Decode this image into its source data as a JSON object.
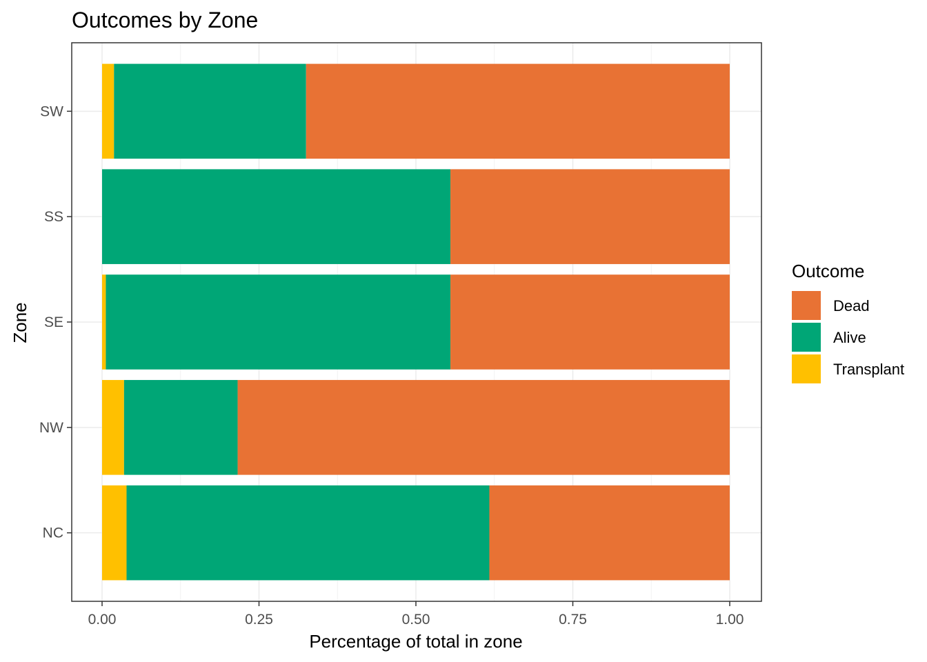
{
  "chart_data": {
    "type": "bar",
    "orientation": "horizontal",
    "stacked": true,
    "title": "Outcomes by Zone",
    "xlabel": "Percentage of total in zone",
    "ylabel": "Zone",
    "xlim": [
      0,
      1
    ],
    "x_ticks": [
      "0.00",
      "0.25",
      "0.50",
      "0.75",
      "1.00"
    ],
    "categories": [
      "NC",
      "NW",
      "SE",
      "SS",
      "SW"
    ],
    "series": [
      {
        "name": "Transplant",
        "color": "#FFC000",
        "values": [
          0.039,
          0.035,
          0.006,
          0.0,
          0.019
        ]
      },
      {
        "name": "Alive",
        "color": "#00A676",
        "values": [
          0.578,
          0.181,
          0.549,
          0.555,
          0.306
        ]
      },
      {
        "name": "Dead",
        "color": "#E87234",
        "values": [
          0.383,
          0.784,
          0.445,
          0.445,
          0.675
        ]
      }
    ],
    "legend": {
      "title": "Outcome",
      "position": "right",
      "order": [
        "Dead",
        "Alive",
        "Transplant"
      ]
    },
    "grid": true,
    "theme": "bw"
  }
}
